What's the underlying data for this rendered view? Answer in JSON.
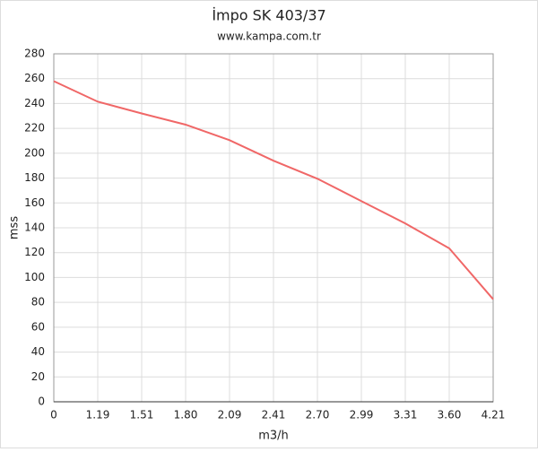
{
  "chart_data": {
    "type": "line",
    "title": "İmpo SK 403/37",
    "subtitle": "www.kampa.com.tr",
    "x_label": "m3/h",
    "y_label": "mss",
    "categories": [
      "0",
      "1.19",
      "1.51",
      "1.80",
      "2.09",
      "2.41",
      "2.70",
      "2.99",
      "3.31",
      "3.60",
      "4.21"
    ],
    "series": [
      {
        "name": "mss",
        "color": "#f06767",
        "values": [
          258,
          241.5,
          232,
          223,
          210.5,
          194,
          179.5,
          161.5,
          143.5,
          123.5,
          82.5
        ]
      }
    ],
    "ylim": [
      0,
      280
    ],
    "yticks": [
      0,
      20,
      40,
      60,
      80,
      100,
      120,
      140,
      160,
      180,
      200,
      220,
      240,
      260,
      280
    ],
    "grid": true
  }
}
